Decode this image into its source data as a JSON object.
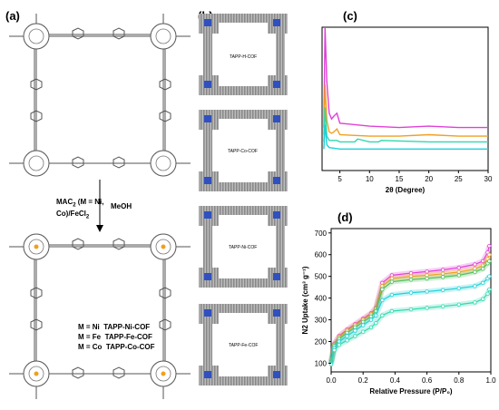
{
  "panels": {
    "a": "(a)",
    "b": "(b)",
    "c": "(c)",
    "d": "(d)"
  },
  "reaction": {
    "reagent_line1": "MAC",
    "reagent_sub": "2",
    "reagent_line1_rest": " (M = Ni,",
    "reagent_line2": "Co)/FeCl",
    "reagent_line2_sub": "2",
    "solvent": "MeOH"
  },
  "products": [
    {
      "m": "M = Ni",
      "cof": "TAPP-Ni-COF"
    },
    {
      "m": "M = Fe",
      "cof": "TAPP-Fe-COF"
    },
    {
      "m": "M = Co",
      "cof": "TAPP-Co-COF"
    }
  ],
  "structure_labels": [
    "TAPP-H-COF",
    "TAPP-Co-COF",
    "TAPP-Ni-COF",
    "TAPP-Fe-COF"
  ],
  "colors": {
    "magenta": "#e040d8",
    "orange": "#f0a020",
    "teal": "#30d8b0",
    "cyan": "#20d0d8",
    "green": "#50c060",
    "blue": "#3050c0",
    "molecule": "#555555"
  },
  "chart_data": [
    {
      "type": "line",
      "panel": "c",
      "xlabel": "2θ (Degree)",
      "x_ticks": [
        5,
        10,
        15,
        20,
        25,
        30
      ],
      "xlim": [
        2,
        30
      ],
      "series": [
        {
          "color": "#e040d8",
          "x": [
            2.3,
            2.5,
            2.8,
            3.2,
            3.6,
            4.0,
            4.5,
            5.0,
            10,
            15,
            20,
            25,
            30
          ],
          "y": [
            0.3,
            1.0,
            0.62,
            0.4,
            0.36,
            0.38,
            0.4,
            0.33,
            0.31,
            0.3,
            0.31,
            0.3,
            0.3
          ]
        },
        {
          "color": "#f0a020",
          "x": [
            2.3,
            2.5,
            2.8,
            3.2,
            3.6,
            4.0,
            4.5,
            5.0,
            10,
            15,
            20,
            25,
            30
          ],
          "y": [
            0.25,
            0.6,
            0.35,
            0.27,
            0.26,
            0.27,
            0.29,
            0.25,
            0.24,
            0.24,
            0.25,
            0.24,
            0.24
          ]
        },
        {
          "color": "#30d8b0",
          "x": [
            2.3,
            2.5,
            2.8,
            3.2,
            4.5,
            5.0,
            7.5,
            8,
            10,
            11.5,
            12,
            20,
            30
          ],
          "y": [
            0.2,
            0.44,
            0.24,
            0.21,
            0.21,
            0.2,
            0.2,
            0.22,
            0.2,
            0.2,
            0.21,
            0.2,
            0.2
          ]
        },
        {
          "color": "#20d0d8",
          "x": [
            2.3,
            2.5,
            2.8,
            3.2,
            5.0,
            10,
            15,
            20,
            25,
            30
          ],
          "y": [
            0.15,
            0.32,
            0.18,
            0.16,
            0.15,
            0.15,
            0.15,
            0.15,
            0.15,
            0.15
          ]
        }
      ]
    },
    {
      "type": "line",
      "panel": "d",
      "xlabel": "Relative Pressure (P/P₀)",
      "ylabel": "N2 Uptake (cm³ g⁻¹)",
      "xlim": [
        0,
        1.0
      ],
      "ylim": [
        60,
        720
      ],
      "x_ticks": [
        0.0,
        0.2,
        0.4,
        0.6,
        0.8,
        1.0
      ],
      "y_ticks": [
        100,
        200,
        300,
        400,
        500,
        600,
        700
      ],
      "series": [
        {
          "color": "#e040d8",
          "x": [
            0.0,
            0.02,
            0.05,
            0.1,
            0.15,
            0.2,
            0.25,
            0.28,
            0.32,
            0.38,
            0.5,
            0.6,
            0.7,
            0.8,
            0.9,
            0.95,
            0.98,
            0.99
          ],
          "y": [
            110,
            190,
            225,
            255,
            280,
            305,
            330,
            355,
            470,
            505,
            515,
            522,
            530,
            540,
            555,
            570,
            610,
            640
          ]
        },
        {
          "color": "#f0a020",
          "x": [
            0.0,
            0.02,
            0.05,
            0.1,
            0.15,
            0.2,
            0.25,
            0.28,
            0.32,
            0.38,
            0.5,
            0.6,
            0.7,
            0.8,
            0.9,
            0.95,
            0.98,
            0.99
          ],
          "y": [
            108,
            185,
            220,
            250,
            275,
            300,
            325,
            350,
            455,
            490,
            500,
            505,
            512,
            520,
            535,
            550,
            580,
            600
          ]
        },
        {
          "color": "#50c060",
          "x": [
            0.0,
            0.02,
            0.05,
            0.1,
            0.15,
            0.2,
            0.25,
            0.28,
            0.32,
            0.38,
            0.5,
            0.6,
            0.7,
            0.8,
            0.9,
            0.95,
            0.98,
            0.99
          ],
          "y": [
            105,
            180,
            212,
            240,
            265,
            290,
            315,
            340,
            440,
            475,
            485,
            490,
            497,
            505,
            520,
            535,
            560,
            570
          ]
        },
        {
          "color": "#20d0d8",
          "x": [
            0.0,
            0.02,
            0.05,
            0.1,
            0.15,
            0.2,
            0.25,
            0.28,
            0.32,
            0.38,
            0.5,
            0.6,
            0.7,
            0.8,
            0.9,
            0.95,
            0.98,
            0.99
          ],
          "y": [
            100,
            170,
            200,
            225,
            250,
            275,
            300,
            320,
            390,
            415,
            425,
            430,
            437,
            445,
            455,
            470,
            490,
            500
          ]
        },
        {
          "color": "#30d8b0",
          "x": [
            0.0,
            0.02,
            0.05,
            0.1,
            0.15,
            0.2,
            0.25,
            0.28,
            0.32,
            0.38,
            0.5,
            0.6,
            0.7,
            0.8,
            0.9,
            0.95,
            0.98,
            0.99
          ],
          "y": [
            95,
            160,
            185,
            205,
            225,
            245,
            265,
            285,
            320,
            340,
            348,
            355,
            362,
            370,
            380,
            395,
            420,
            440
          ]
        }
      ]
    }
  ]
}
